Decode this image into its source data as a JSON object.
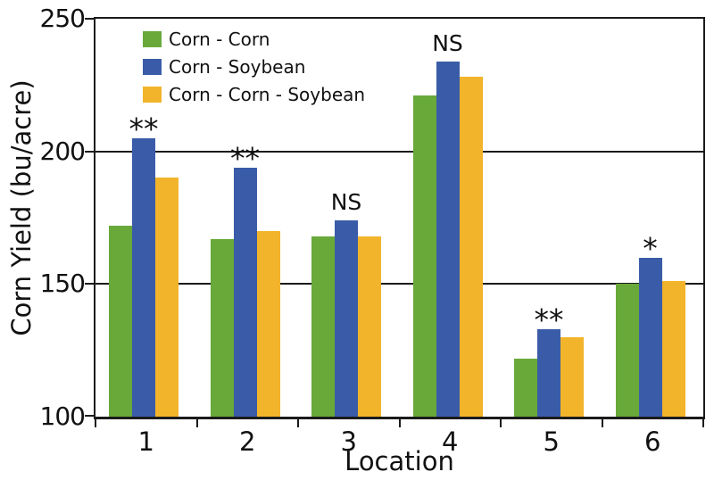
{
  "chart_data": {
    "type": "bar",
    "title": "",
    "xlabel": "Location",
    "ylabel": "Corn Yield (bu/acre)",
    "ylim": [
      100,
      250
    ],
    "yticks": [
      100,
      150,
      200,
      250
    ],
    "categories": [
      "1",
      "2",
      "3",
      "4",
      "5",
      "6"
    ],
    "series": [
      {
        "name": "Corn - Corn",
        "color": "#68A93A",
        "values": [
          172,
          167,
          168,
          221,
          122,
          150
        ]
      },
      {
        "name": "Corn - Soybean",
        "color": "#3A5CA8",
        "values": [
          205,
          194,
          174,
          234,
          133,
          160
        ]
      },
      {
        "name": "Corn - Corn - Soybean",
        "color": "#F2B42A",
        "values": [
          190,
          170,
          168,
          228,
          130,
          151
        ]
      }
    ],
    "annotations": [
      "**",
      "**",
      "NS",
      "NS",
      "**",
      "*"
    ],
    "annotation_over_series": "Corn - Soybean",
    "legend_position": "top-left-inside",
    "grid": "horizontal",
    "frame_color": "#1b1b1b"
  }
}
